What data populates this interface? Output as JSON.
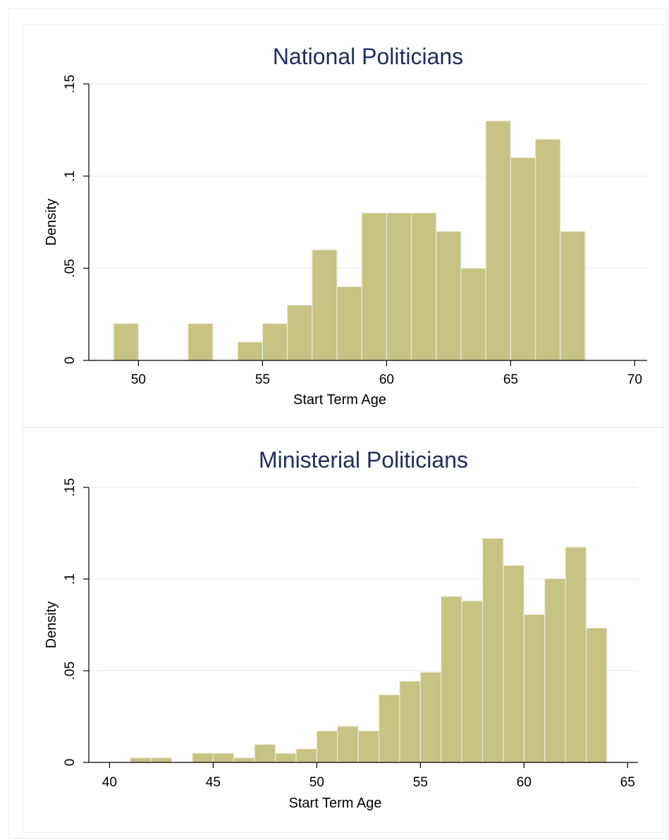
{
  "chart_data": [
    {
      "type": "bar",
      "title": "National Politicians",
      "xlabel": "Start Term Age",
      "ylabel": "Density",
      "xlim": [
        48,
        70.5
      ],
      "ylim": [
        0,
        0.15
      ],
      "xticks": [
        50,
        55,
        60,
        65,
        70
      ],
      "xtick_labels": [
        "50",
        "55",
        "60",
        "65",
        "70"
      ],
      "yticks": [
        0,
        0.05,
        0.1,
        0.15
      ],
      "ytick_labels": [
        "0",
        ".05",
        ".1",
        ".15"
      ],
      "grid": true,
      "bin_width": 1,
      "bins": [
        {
          "x0": 49,
          "value": 0.02
        },
        {
          "x0": 52,
          "value": 0.02
        },
        {
          "x0": 54,
          "value": 0.01
        },
        {
          "x0": 55,
          "value": 0.02
        },
        {
          "x0": 56,
          "value": 0.03
        },
        {
          "x0": 57,
          "value": 0.06
        },
        {
          "x0": 58,
          "value": 0.04
        },
        {
          "x0": 59,
          "value": 0.08
        },
        {
          "x0": 60,
          "value": 0.08
        },
        {
          "x0": 61,
          "value": 0.08
        },
        {
          "x0": 62,
          "value": 0.07
        },
        {
          "x0": 63,
          "value": 0.05
        },
        {
          "x0": 64,
          "value": 0.13
        },
        {
          "x0": 65,
          "value": 0.11
        },
        {
          "x0": 66,
          "value": 0.12
        },
        {
          "x0": 67,
          "value": 0.07
        }
      ]
    },
    {
      "type": "bar",
      "title": "Ministerial Politicians",
      "xlabel": "Start Term Age",
      "ylabel": "Density",
      "xlim": [
        39,
        65.5
      ],
      "ylim": [
        0,
        0.15
      ],
      "xticks": [
        40,
        45,
        50,
        55,
        60,
        65
      ],
      "xtick_labels": [
        "40",
        "45",
        "50",
        "55",
        "60",
        "65"
      ],
      "yticks": [
        0,
        0.05,
        0.1,
        0.15
      ],
      "ytick_labels": [
        "0",
        ".05",
        ".1",
        ".15"
      ],
      "grid": true,
      "bin_width": 1,
      "bins": [
        {
          "x0": 41,
          "value": 0.0025
        },
        {
          "x0": 42,
          "value": 0.0025
        },
        {
          "x0": 44,
          "value": 0.005
        },
        {
          "x0": 45,
          "value": 0.005
        },
        {
          "x0": 46,
          "value": 0.0025
        },
        {
          "x0": 47,
          "value": 0.0098
        },
        {
          "x0": 48,
          "value": 0.005
        },
        {
          "x0": 49,
          "value": 0.0074
        },
        {
          "x0": 50,
          "value": 0.0172
        },
        {
          "x0": 51,
          "value": 0.0197
        },
        {
          "x0": 52,
          "value": 0.0172
        },
        {
          "x0": 53,
          "value": 0.0369
        },
        {
          "x0": 54,
          "value": 0.0443
        },
        {
          "x0": 55,
          "value": 0.0492
        },
        {
          "x0": 56,
          "value": 0.0905
        },
        {
          "x0": 57,
          "value": 0.0881
        },
        {
          "x0": 58,
          "value": 0.1222
        },
        {
          "x0": 59,
          "value": 0.1074
        },
        {
          "x0": 60,
          "value": 0.0807
        },
        {
          "x0": 61,
          "value": 0.1002
        },
        {
          "x0": 62,
          "value": 0.1174
        },
        {
          "x0": 63,
          "value": 0.0733
        }
      ]
    }
  ]
}
